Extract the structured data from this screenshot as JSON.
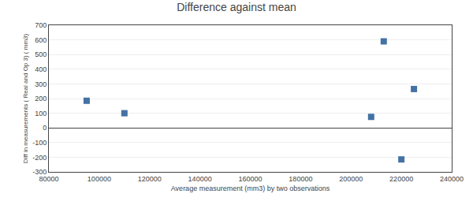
{
  "chart_data": {
    "type": "scatter",
    "title": "Difference against mean",
    "xlabel": "Average measurement (mm3) by two observations",
    "ylabel": "Diff in measurements ( Real and Op 3) ( mm3)",
    "x": [
      95000,
      110000,
      208000,
      213000,
      220000,
      225000
    ],
    "values": [
      185,
      100,
      75,
      590,
      -215,
      265
    ],
    "color": "#4472a4",
    "marker": "square",
    "xlim": [
      80000,
      240000
    ],
    "ylim": [
      -300,
      700
    ],
    "xticks": [
      80000,
      100000,
      120000,
      140000,
      160000,
      180000,
      200000,
      220000,
      240000
    ],
    "yticks": [
      -300,
      -200,
      -100,
      0,
      100,
      200,
      300,
      400,
      500,
      600,
      700
    ],
    "grid": "y"
  }
}
